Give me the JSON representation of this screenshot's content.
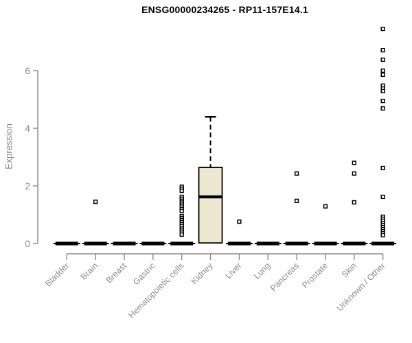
{
  "colors": {
    "background": "#ffffff",
    "box_fill": "#EDE8CF",
    "box_stroke": "#000000",
    "median_color": "#000000",
    "outlier_fill": "#ffffff",
    "outlier_stroke": "#000000",
    "axis": "#888888",
    "tick_text": "#8c8c8c",
    "title_text": "#000000"
  },
  "chart_data": {
    "type": "boxplot",
    "title": "ENSG00000234265 - RP11-157E14.1",
    "xlabel": "",
    "ylabel": "Expression",
    "ylim": [
      0,
      7.6
    ],
    "yticks": [
      0,
      2,
      4,
      6
    ],
    "grid": false,
    "legend": null,
    "categories": [
      "Bladder",
      "Brain",
      "Breast",
      "Gastric",
      "Hematopoietic cells",
      "Kidney",
      "Liver",
      "Lung",
      "Pancreas",
      "Prostate",
      "Skin",
      "Unknown / Other"
    ],
    "boxes": [
      {
        "category": "Bladder",
        "q1": 0,
        "median": 0,
        "q3": 0,
        "whisker_low": 0,
        "whisker_high": 0,
        "outliers": []
      },
      {
        "category": "Brain",
        "q1": 0,
        "median": 0,
        "q3": 0,
        "whisker_low": 0,
        "whisker_high": 0,
        "outliers": [
          1.45
        ]
      },
      {
        "category": "Breast",
        "q1": 0,
        "median": 0,
        "q3": 0,
        "whisker_low": 0,
        "whisker_high": 0,
        "outliers": []
      },
      {
        "category": "Gastric",
        "q1": 0,
        "median": 0,
        "q3": 0,
        "whisker_low": 0,
        "whisker_high": 0,
        "outliers": []
      },
      {
        "category": "Hematopoietic cells",
        "q1": 0,
        "median": 0,
        "q3": 0,
        "whisker_low": 0,
        "whisker_high": 0,
        "outliers": [
          1.97,
          1.9,
          1.83,
          1.62,
          1.55,
          1.48,
          1.42,
          1.35,
          1.28,
          1.2,
          1.13,
          0.95,
          0.88,
          0.81,
          0.74,
          0.67,
          0.6,
          0.52,
          0.45,
          0.38,
          0.31
        ]
      },
      {
        "category": "Kidney",
        "q1": 0.02,
        "median": 1.62,
        "q3": 2.64,
        "whisker_low": 0.02,
        "whisker_high": 4.4,
        "outliers": []
      },
      {
        "category": "Liver",
        "q1": 0,
        "median": 0,
        "q3": 0,
        "whisker_low": 0,
        "whisker_high": 0,
        "outliers": [
          0.76
        ]
      },
      {
        "category": "Lung",
        "q1": 0,
        "median": 0,
        "q3": 0,
        "whisker_low": 0,
        "whisker_high": 0,
        "outliers": []
      },
      {
        "category": "Pancreas",
        "q1": 0,
        "median": 0,
        "q3": 0,
        "whisker_low": 0,
        "whisker_high": 0,
        "outliers": [
          2.43,
          1.48
        ]
      },
      {
        "category": "Prostate",
        "q1": 0,
        "median": 0,
        "q3": 0,
        "whisker_low": 0,
        "whisker_high": 0,
        "outliers": [
          1.29
        ]
      },
      {
        "category": "Skin",
        "q1": 0,
        "median": 0,
        "q3": 0,
        "whisker_low": 0,
        "whisker_high": 0,
        "outliers": [
          2.8,
          2.43,
          1.43
        ]
      },
      {
        "category": "Unknown / Other",
        "q1": 0,
        "median": 0,
        "q3": 0,
        "whisker_low": 0,
        "whisker_high": 0,
        "outliers": [
          7.45,
          6.71,
          6.38,
          6.0,
          5.86,
          5.48,
          5.38,
          5.29,
          4.95,
          4.69,
          2.62,
          1.62,
          0.93,
          0.86,
          0.79,
          0.71,
          0.64,
          0.57,
          0.5,
          0.43,
          0.36,
          0.29
        ]
      }
    ]
  }
}
